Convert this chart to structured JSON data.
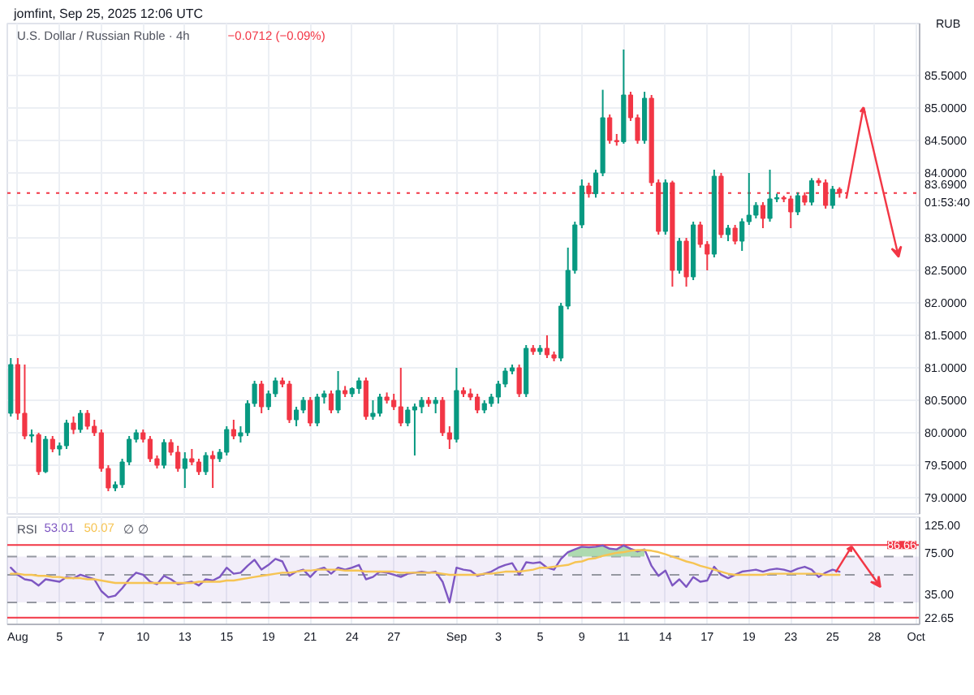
{
  "chart_data": [
    {
      "type": "candlestick",
      "title": "U.S. Dollar / Russian Ruble · 4h",
      "subtitle": "−0.0712 (−0.09%)",
      "ylabel": "RUB",
      "annotations": [
        "jomfint, Sep 25, 2025 12:06 UTC"
      ],
      "categories": [
        null,
        null,
        null,
        null,
        null,
        null,
        null,
        null,
        null,
        null,
        null,
        null,
        null,
        null,
        null,
        null,
        null,
        null,
        null,
        null,
        null,
        null,
        null,
        null,
        null,
        null,
        null,
        null,
        null,
        null,
        null,
        null,
        null,
        null,
        null,
        null,
        null,
        null,
        null,
        null,
        null,
        null,
        null,
        null,
        null,
        null,
        null,
        null,
        null,
        null,
        null,
        null,
        null,
        null,
        null,
        null,
        null,
        null,
        null,
        null,
        null,
        null,
        null,
        null,
        null,
        null,
        null,
        null,
        null,
        null,
        null,
        null,
        null,
        null,
        null,
        null,
        null,
        null,
        null,
        null,
        null,
        null,
        null,
        null,
        null,
        null,
        null,
        null,
        null,
        null,
        null,
        null,
        null,
        null,
        null,
        null,
        null,
        null,
        null,
        null,
        null,
        null,
        null,
        null,
        null,
        null,
        null,
        null,
        null,
        null,
        null,
        null,
        null,
        null,
        null,
        null,
        null,
        null,
        null,
        null,
        null,
        null,
        null,
        null,
        null,
        null,
        null,
        null,
        null,
        null,
        null
      ],
      "ohlc": [
        [
          80.3,
          81.15,
          80.25,
          81.05
        ],
        [
          81.05,
          81.15,
          80.2,
          80.3
        ],
        [
          80.3,
          81.05,
          79.9,
          79.95
        ],
        [
          79.95,
          80.05,
          79.85,
          79.97
        ],
        [
          79.97,
          80.0,
          79.35,
          79.4
        ],
        [
          79.4,
          79.95,
          79.38,
          79.9
        ],
        [
          79.9,
          79.95,
          79.7,
          79.75
        ],
        [
          79.75,
          79.85,
          79.65,
          79.8
        ],
        [
          79.8,
          80.2,
          79.75,
          80.15
        ],
        [
          80.15,
          80.25,
          79.98,
          80.05
        ],
        [
          80.05,
          80.35,
          80.0,
          80.3
        ],
        [
          80.3,
          80.35,
          80.05,
          80.1
        ],
        [
          80.1,
          80.2,
          79.95,
          80.0
        ],
        [
          80.0,
          80.05,
          79.4,
          79.45
        ],
        [
          79.45,
          79.5,
          79.1,
          79.15
        ],
        [
          79.15,
          79.25,
          79.1,
          79.2
        ],
        [
          79.2,
          79.6,
          79.15,
          79.55
        ],
        [
          79.55,
          79.95,
          79.5,
          79.9
        ],
        [
          79.9,
          80.05,
          79.85,
          80.0
        ],
        [
          80.0,
          80.05,
          79.85,
          79.9
        ],
        [
          79.9,
          79.95,
          79.55,
          79.6
        ],
        [
          79.6,
          79.65,
          79.45,
          79.5
        ],
        [
          79.5,
          79.9,
          79.45,
          79.85
        ],
        [
          79.85,
          79.9,
          79.65,
          79.7
        ],
        [
          79.7,
          79.8,
          79.4,
          79.45
        ],
        [
          79.45,
          79.7,
          79.15,
          79.6
        ],
        [
          79.6,
          79.75,
          79.5,
          79.55
        ],
        [
          79.55,
          79.6,
          79.35,
          79.4
        ],
        [
          79.4,
          79.7,
          79.35,
          79.65
        ],
        [
          79.65,
          79.72,
          79.15,
          79.6
        ],
        [
          79.6,
          79.75,
          79.55,
          79.7
        ],
        [
          79.7,
          80.1,
          79.65,
          80.05
        ],
        [
          80.05,
          80.2,
          79.9,
          79.95
        ],
        [
          79.95,
          80.1,
          79.85,
          80.0
        ],
        [
          80.0,
          80.5,
          79.95,
          80.45
        ],
        [
          80.45,
          80.8,
          80.4,
          80.75
        ],
        [
          80.75,
          80.8,
          80.3,
          80.4
        ],
        [
          80.4,
          80.65,
          80.35,
          80.6
        ],
        [
          80.6,
          80.85,
          80.55,
          80.8
        ],
        [
          80.8,
          80.85,
          80.7,
          80.75
        ],
        [
          80.75,
          80.8,
          80.15,
          80.2
        ],
        [
          80.2,
          80.4,
          80.1,
          80.35
        ],
        [
          80.35,
          80.55,
          80.3,
          80.5
        ],
        [
          80.5,
          80.55,
          80.1,
          80.15
        ],
        [
          80.15,
          80.6,
          80.1,
          80.55
        ],
        [
          80.55,
          80.65,
          80.45,
          80.6
        ],
        [
          80.6,
          80.65,
          80.3,
          80.35
        ],
        [
          80.35,
          80.95,
          80.3,
          80.65
        ],
        [
          80.65,
          80.72,
          80.55,
          80.6
        ],
        [
          80.6,
          80.7,
          80.55,
          80.68
        ],
        [
          80.68,
          80.85,
          80.6,
          80.8
        ],
        [
          80.8,
          80.85,
          80.2,
          80.25
        ],
        [
          80.25,
          80.5,
          80.2,
          80.3
        ],
        [
          80.3,
          80.6,
          80.25,
          80.55
        ],
        [
          80.55,
          80.62,
          80.45,
          80.5
        ],
        [
          80.5,
          80.6,
          80.35,
          80.4
        ],
        [
          80.4,
          81.0,
          80.1,
          80.15
        ],
        [
          80.15,
          80.4,
          80.1,
          80.35
        ],
        [
          80.35,
          80.45,
          79.65,
          80.4
        ],
        [
          80.4,
          80.55,
          80.3,
          80.5
        ],
        [
          80.5,
          80.55,
          80.4,
          80.45
        ],
        [
          80.45,
          80.55,
          80.3,
          80.5
        ],
        [
          80.5,
          80.55,
          79.95,
          80.0
        ],
        [
          80.0,
          80.1,
          79.75,
          79.9
        ],
        [
          79.9,
          81.0,
          79.85,
          80.65
        ],
        [
          80.65,
          80.7,
          80.55,
          80.6
        ],
        [
          80.6,
          80.68,
          80.5,
          80.55
        ],
        [
          80.55,
          80.6,
          80.3,
          80.35
        ],
        [
          80.35,
          80.5,
          80.3,
          80.45
        ],
        [
          80.45,
          80.6,
          80.4,
          80.55
        ],
        [
          80.55,
          80.8,
          80.45,
          80.75
        ],
        [
          80.75,
          81.0,
          80.7,
          80.95
        ],
        [
          80.95,
          81.05,
          80.9,
          81.0
        ],
        [
          81.0,
          81.05,
          80.55,
          80.6
        ],
        [
          80.6,
          81.35,
          80.55,
          81.3
        ],
        [
          81.3,
          81.35,
          81.2,
          81.25
        ],
        [
          81.25,
          81.35,
          81.2,
          81.3
        ],
        [
          81.3,
          81.5,
          81.15,
          81.2
        ],
        [
          81.2,
          81.25,
          81.1,
          81.15
        ],
        [
          81.15,
          82.0,
          81.1,
          81.95
        ],
        [
          81.95,
          82.85,
          81.9,
          82.5
        ],
        [
          82.5,
          83.25,
          82.45,
          83.2
        ],
        [
          83.2,
          83.9,
          83.15,
          83.8
        ],
        [
          83.8,
          83.85,
          83.62,
          83.68
        ],
        [
          83.68,
          84.05,
          83.62,
          84.0
        ],
        [
          84.0,
          85.28,
          83.95,
          84.85
        ],
        [
          84.85,
          84.9,
          84.45,
          84.5
        ],
        [
          84.5,
          84.6,
          84.42,
          84.48
        ],
        [
          84.48,
          85.9,
          84.45,
          85.2
        ],
        [
          85.2,
          85.25,
          84.8,
          84.85
        ],
        [
          84.85,
          84.9,
          84.45,
          84.5
        ],
        [
          84.5,
          85.25,
          84.45,
          85.15
        ],
        [
          85.15,
          85.2,
          83.8,
          83.85
        ],
        [
          83.85,
          83.9,
          83.05,
          83.1
        ],
        [
          83.1,
          83.9,
          83.05,
          83.85
        ],
        [
          83.85,
          83.88,
          82.25,
          82.5
        ],
        [
          82.5,
          83.0,
          82.45,
          82.95
        ],
        [
          82.95,
          83.0,
          82.25,
          82.4
        ],
        [
          82.4,
          83.25,
          82.35,
          83.2
        ],
        [
          83.2,
          83.25,
          82.85,
          82.9
        ],
        [
          82.9,
          82.95,
          82.5,
          82.75
        ],
        [
          82.75,
          84.05,
          82.7,
          83.95
        ],
        [
          83.95,
          84.0,
          83.0,
          83.05
        ],
        [
          83.05,
          83.2,
          82.95,
          83.15
        ],
        [
          83.15,
          83.2,
          82.9,
          82.95
        ],
        [
          82.95,
          83.3,
          82.8,
          83.25
        ],
        [
          83.25,
          84.0,
          83.2,
          83.35
        ],
        [
          83.35,
          83.55,
          83.3,
          83.5
        ],
        [
          83.5,
          83.55,
          83.15,
          83.3
        ],
        [
          83.3,
          84.05,
          83.25,
          83.6
        ],
        [
          83.6,
          83.68,
          83.55,
          83.62
        ],
        [
          83.62,
          83.65,
          83.55,
          83.6
        ],
        [
          83.6,
          83.65,
          83.15,
          83.4
        ],
        [
          83.4,
          83.7,
          83.35,
          83.65
        ],
        [
          83.65,
          83.7,
          83.5,
          83.55
        ],
        [
          83.55,
          83.92,
          83.5,
          83.88
        ],
        [
          83.88,
          83.92,
          83.8,
          83.85
        ],
        [
          83.85,
          83.9,
          83.45,
          83.5
        ],
        [
          83.5,
          83.8,
          83.45,
          83.75
        ],
        [
          83.75,
          83.78,
          83.62,
          83.69
        ],
        null,
        null,
        null,
        null,
        null,
        null,
        null,
        null,
        null,
        null,
        null
      ],
      "colors": [
        "#089981",
        "#f23645",
        "#f23645",
        "#089981",
        "#f23645",
        "#089981",
        "#f23645",
        "#089981",
        "#089981",
        "#f23645",
        "#089981",
        "#f23645",
        "#f23645",
        "#f23645",
        "#f23645",
        "#089981",
        "#089981",
        "#089981",
        "#089981",
        "#f23645",
        "#f23645",
        "#f23645",
        "#089981",
        "#f23645",
        "#f23645",
        "#089981",
        "#f23645",
        "#f23645",
        "#089981",
        "#f23645",
        "#089981",
        "#089981",
        "#f23645",
        "#089981",
        "#089981",
        "#089981",
        "#f23645",
        "#089981",
        "#089981",
        "#f23645",
        "#f23645",
        "#089981",
        "#089981",
        "#f23645",
        "#089981",
        "#089981",
        "#f23645",
        "#089981",
        "#f23645",
        "#089981",
        "#089981",
        "#f23645",
        "#089981",
        "#089981",
        "#f23645",
        "#f23645",
        "#f23645",
        "#089981",
        "#089981",
        "#089981",
        "#f23645",
        "#089981",
        "#f23645",
        "#f23645",
        "#089981",
        "#f23645",
        "#f23645",
        "#f23645",
        "#089981",
        "#089981",
        "#089981",
        "#089981",
        "#089981",
        "#f23645",
        "#089981",
        "#f23645",
        "#089981",
        "#f23645",
        "#f23645",
        "#089981",
        "#089981",
        "#089981",
        "#089981",
        "#f23645",
        "#089981",
        "#089981",
        "#f23645",
        "#f23645",
        "#089981",
        "#f23645",
        "#f23645",
        "#089981",
        "#f23645",
        "#f23645",
        "#089981",
        "#f23645",
        "#089981",
        "#f23645",
        "#089981",
        "#f23645",
        "#f23645",
        "#089981",
        "#f23645",
        "#089981",
        "#f23645",
        "#089981",
        "#089981",
        "#089981",
        "#f23645",
        "#089981",
        "#089981",
        "#f23645",
        "#f23645",
        "#089981",
        "#f23645",
        "#089981",
        "#f23645",
        "#f23645",
        "#089981",
        "#f23645",
        null,
        null,
        null,
        null,
        null,
        null,
        null,
        null,
        null,
        null,
        null
      ],
      "ylim": [
        78.75,
        86.3
      ],
      "yticks": [
        {
          "value": 79,
          "label": "79.0000"
        },
        {
          "value": 79.5,
          "label": "79.5000"
        },
        {
          "value": 80,
          "label": "80.0000"
        },
        {
          "value": 80.5,
          "label": "80.5000"
        },
        {
          "value": 81,
          "label": "81.0000"
        },
        {
          "value": 81.5,
          "label": "81.5000"
        },
        {
          "value": 82,
          "label": "82.0000"
        },
        {
          "value": 82.5,
          "label": "82.5000"
        },
        {
          "value": 83,
          "label": "83.0000"
        },
        {
          "value": 83.5,
          "label": null
        },
        {
          "value": 84,
          "label": "84.0000"
        },
        {
          "value": 84.5,
          "label": "84.5000"
        },
        {
          "value": 85,
          "label": "85.0000"
        },
        {
          "value": 85.5,
          "label": "85.5000"
        }
      ],
      "grid": true,
      "tick_labels": "y",
      "ref_lines": [
        {
          "axis": "y",
          "value": 83.69,
          "label": "83.6900\n01:53:40",
          "color": "#f23645",
          "line_style": "dotted"
        }
      ]
    },
    {
      "type": "line",
      "title": "RSI",
      "annotations": [
        "53.01",
        "50.07",
        "∅",
        "∅"
      ],
      "log": true,
      "categories": [
        null,
        "Aug",
        null,
        null,
        null,
        null,
        null,
        "5",
        null,
        null,
        null,
        null,
        null,
        "7",
        null,
        null,
        null,
        null,
        null,
        "10",
        null,
        null,
        null,
        null,
        null,
        "13",
        null,
        null,
        null,
        null,
        null,
        "15",
        null,
        null,
        null,
        null,
        null,
        "19",
        null,
        null,
        null,
        null,
        null,
        "21",
        null,
        null,
        null,
        null,
        null,
        "24",
        null,
        null,
        null,
        null,
        null,
        "27",
        null,
        null,
        null,
        null,
        null,
        null,
        null,
        null,
        "Sep",
        null,
        null,
        null,
        null,
        null,
        "3",
        null,
        null,
        null,
        null,
        null,
        "5",
        null,
        null,
        null,
        null,
        null,
        "9",
        null,
        null,
        null,
        null,
        null,
        "11",
        null,
        null,
        null,
        null,
        null,
        "14",
        null,
        null,
        null,
        null,
        null,
        "17",
        null,
        null,
        null,
        null,
        null,
        "19",
        null,
        null,
        null,
        null,
        null,
        "23",
        null,
        null,
        null,
        null,
        null,
        "25",
        null,
        null,
        null,
        null,
        null,
        "28",
        null,
        null,
        null,
        null,
        null,
        "Oct"
      ],
      "series": [
        {
          "type": "area",
          "color": "#a5d6a7",
          "values": [
            null,
            null,
            null,
            null,
            null,
            null,
            null,
            null,
            null,
            null,
            null,
            null,
            null,
            null,
            null,
            null,
            null,
            null,
            null,
            null,
            null,
            null,
            null,
            null,
            null,
            null,
            null,
            null,
            null,
            null,
            null,
            null,
            null,
            null,
            null,
            null,
            null,
            null,
            null,
            null,
            null,
            null,
            null,
            null,
            null,
            null,
            null,
            null,
            null,
            null,
            null,
            null,
            null,
            null,
            null,
            null,
            null,
            null,
            null,
            null,
            null,
            null,
            null,
            null,
            null,
            null,
            null,
            null,
            null,
            null,
            null,
            null,
            null,
            null,
            null,
            null,
            null,
            null,
            null,
            null,
            76,
            80,
            84,
            83,
            84,
            86,
            81,
            80,
            86,
            81,
            77,
            80,
            null,
            null,
            null,
            null,
            null,
            null,
            null,
            null,
            null,
            null,
            null,
            null,
            null,
            null,
            null,
            null,
            null,
            null,
            null,
            null,
            null,
            null,
            null,
            null,
            null,
            null,
            null,
            null,
            null,
            null,
            null,
            null,
            null,
            null,
            null,
            null,
            null,
            null,
            null
          ]
        },
        {
          "color": "#7e57c2",
          "values": [
            57,
            50,
            46,
            45,
            41,
            46,
            45,
            44,
            48,
            47,
            50,
            48,
            46,
            37,
            33,
            34,
            39,
            46,
            52,
            50,
            44,
            42,
            49,
            46,
            42,
            43,
            44,
            41,
            46,
            45,
            48,
            57,
            51,
            52,
            59,
            66,
            55,
            60,
            67,
            64,
            49,
            53,
            55,
            48,
            55,
            57,
            51,
            57,
            55,
            57,
            60,
            46,
            48,
            53,
            52,
            50,
            48,
            51,
            52,
            53,
            52,
            53,
            44,
            30,
            57,
            55,
            54,
            49,
            51,
            53,
            57,
            60,
            62,
            50,
            63,
            62,
            63,
            57,
            55,
            67,
            76,
            80,
            84,
            83,
            84,
            86,
            81,
            80,
            86,
            81,
            77,
            80,
            59,
            49,
            54,
            41,
            46,
            40,
            48,
            44,
            45,
            58,
            50,
            47,
            50,
            53,
            54,
            55,
            53,
            55,
            56,
            55,
            53,
            56,
            58,
            55,
            48,
            52,
            55,
            53,
            null,
            null,
            null,
            null,
            null,
            null,
            null,
            null,
            null,
            null,
            null
          ]
        },
        {
          "color": "#f6c453",
          "values": [
            51,
            51,
            50,
            50,
            49,
            49,
            48,
            48,
            47,
            47,
            47,
            46,
            46,
            45,
            44,
            43,
            43,
            43,
            43,
            43,
            43,
            43,
            43,
            43,
            43,
            43,
            43,
            44,
            44,
            44,
            44,
            45,
            45,
            46,
            47,
            48,
            49,
            50,
            51,
            52,
            52,
            53,
            54,
            54,
            55,
            55,
            55,
            55,
            54,
            54,
            54,
            53,
            53,
            53,
            53,
            53,
            52,
            52,
            52,
            52,
            52,
            52,
            51,
            50,
            50,
            50,
            50,
            50,
            51,
            51,
            52,
            53,
            53,
            53,
            54,
            55,
            57,
            57,
            58,
            59,
            60,
            63,
            64,
            67,
            68,
            71,
            73,
            75,
            76,
            78,
            79,
            79,
            78,
            76,
            73,
            70,
            67,
            64,
            62,
            59,
            57,
            55,
            53,
            51,
            50,
            50,
            50,
            50,
            50,
            51,
            51,
            51,
            51,
            51,
            51,
            51,
            51,
            50,
            50,
            50,
            null,
            null,
            null,
            null,
            null,
            null,
            null,
            null,
            null,
            null,
            null
          ]
        }
      ],
      "ylim": [
        20,
        145
      ],
      "yticks": [
        {
          "value": 125,
          "label": "125.00"
        },
        {
          "value": 75,
          "label": "75.00"
        },
        {
          "value": 35,
          "label": "35.00"
        }
      ],
      "grid": "x",
      "bands": [
        {
          "axis": "y",
          "from": 30,
          "to": 70,
          "color": "#7e57c2"
        }
      ],
      "ref_lines": [
        {
          "axis": "y",
          "value": 86.66,
          "label": "86.66",
          "color": "#f23645"
        },
        {
          "axis": "y",
          "value": 22.65,
          "label": "22.65",
          "color": "#f23645"
        },
        {
          "axis": "y",
          "value": 70,
          "color": "#9598a1",
          "line_style": "dashed"
        },
        {
          "axis": "y",
          "value": 50,
          "color": "#9598a1",
          "line_style": "dashed"
        },
        {
          "axis": "y",
          "value": 30,
          "color": "#9598a1",
          "line_style": "dashed"
        }
      ]
    }
  ]
}
